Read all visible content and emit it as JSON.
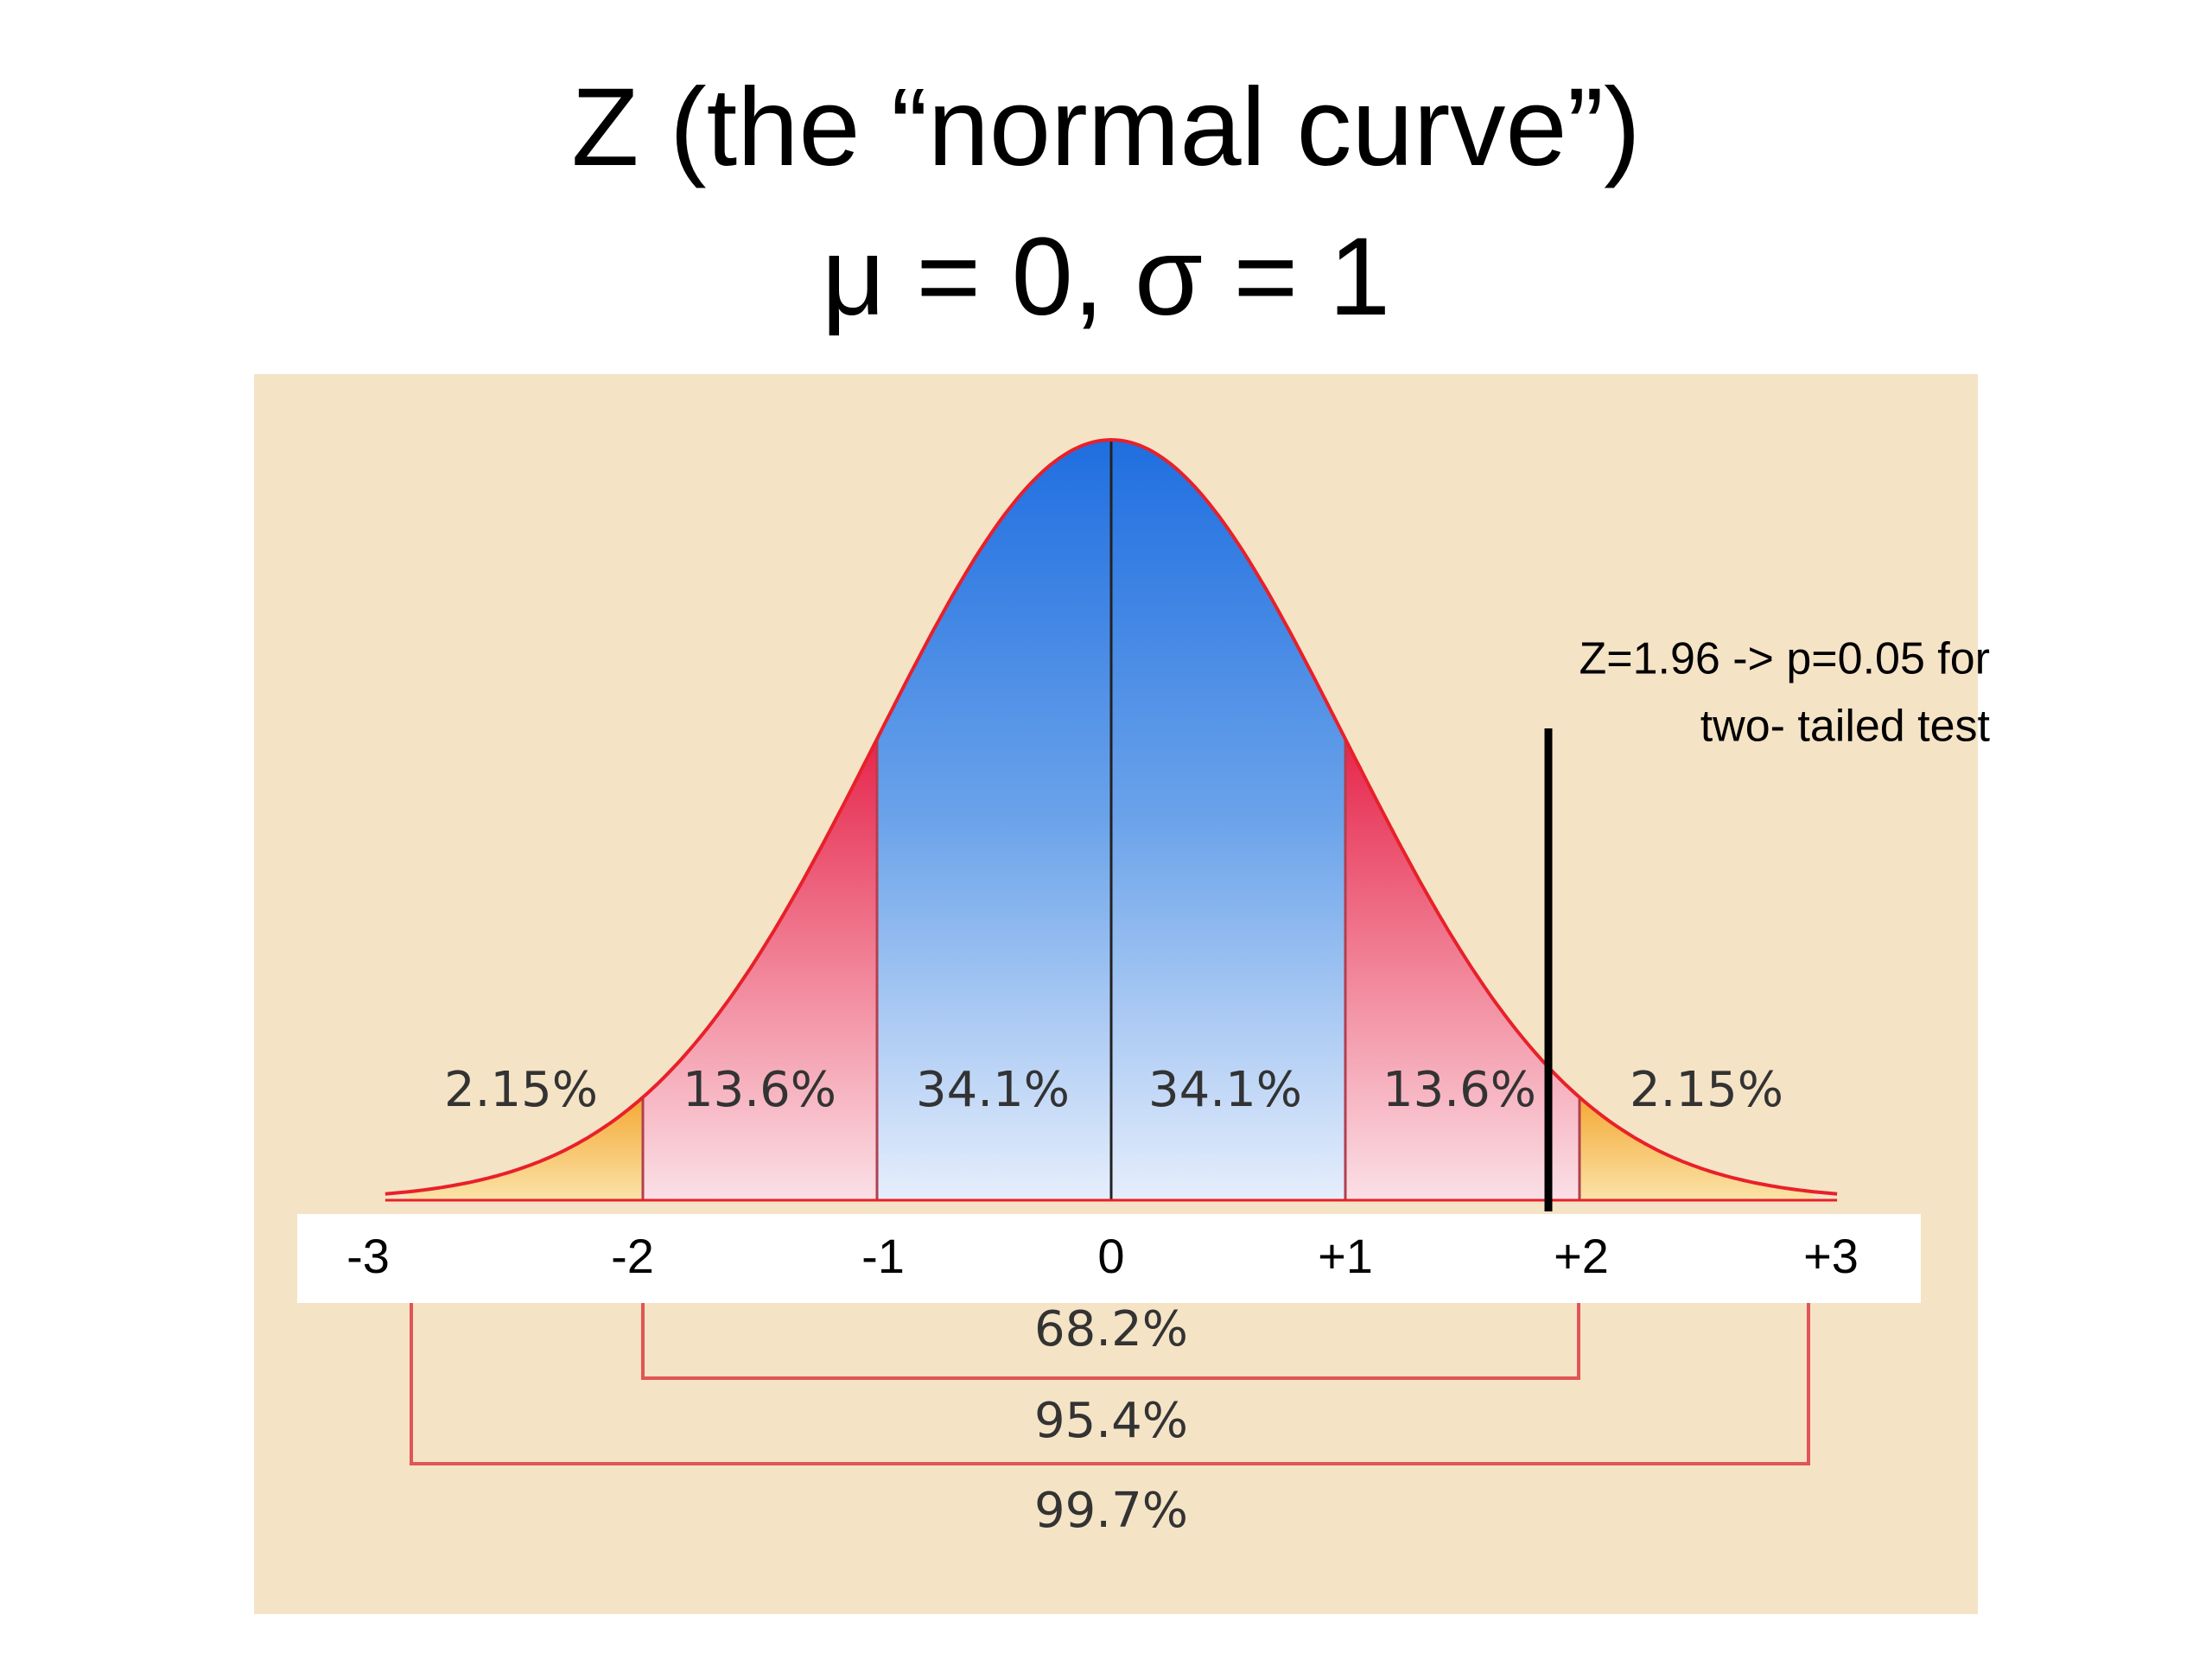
{
  "title": {
    "line1": "Z (the “normal curve”)",
    "line2": "μ = 0, σ = 1"
  },
  "regions": [
    "2.15%",
    "13.6%",
    "34.1%",
    "34.1%",
    "13.6%",
    "2.15%"
  ],
  "axis_labels": [
    "-3",
    "-2",
    "-1",
    "0",
    "+1",
    "+2",
    "+3"
  ],
  "brackets": [
    "68.2%",
    "95.4%",
    "99.7%"
  ],
  "annotation": {
    "line1": "Z=1.96 -> p=0.05 for",
    "line2": "two- tailed test"
  }
}
